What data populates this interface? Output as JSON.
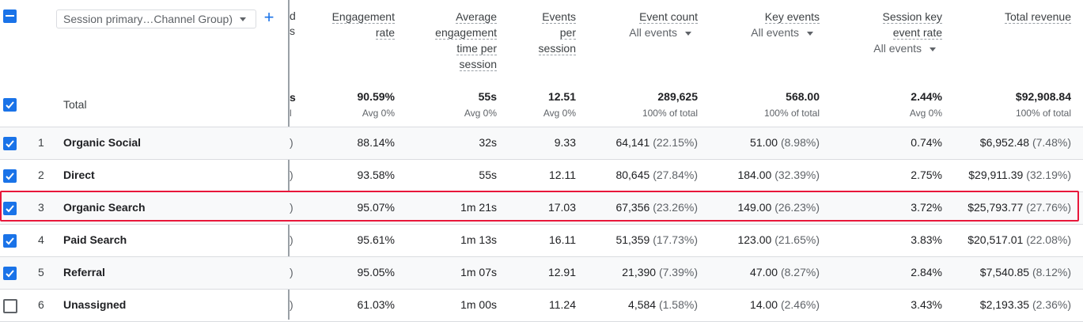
{
  "dimension_select": {
    "label": "Session primary…Channel Group)"
  },
  "add_label": "+",
  "columns": [
    {
      "key": "eng_rate",
      "lines": [
        "Engagement",
        "rate"
      ]
    },
    {
      "key": "avg_time",
      "lines": [
        "Average",
        "engagement",
        "time per",
        "session"
      ]
    },
    {
      "key": "events_per",
      "lines": [
        "Events",
        "per",
        "session"
      ]
    },
    {
      "key": "event_count",
      "lines": [
        "Event count"
      ],
      "filter": "All events"
    },
    {
      "key": "key_events",
      "lines": [
        "Key events"
      ],
      "filter": "All events"
    },
    {
      "key": "sess_key_rate",
      "lines": [
        "Session key",
        "event rate"
      ],
      "filter": "All events"
    },
    {
      "key": "revenue",
      "lines": [
        "Total revenue"
      ]
    }
  ],
  "clipped_header_fragments": [
    "d",
    "s"
  ],
  "clipped_total_fragments": [
    "s",
    "l"
  ],
  "clipped_row_fragment": ")",
  "total": {
    "label": "Total",
    "values": [
      "90.59%",
      "55s",
      "12.51",
      "289,625",
      "568.00",
      "2.44%",
      "$92,908.84"
    ],
    "subs": [
      "Avg 0%",
      "Avg 0%",
      "Avg 0%",
      "100% of total",
      "100% of total",
      "Avg 0%",
      "100% of total"
    ]
  },
  "rows": [
    {
      "n": "1",
      "channel": "Organic Social",
      "checked": true,
      "values": [
        "88.14%",
        "32s",
        "9.33",
        "64,141",
        "51.00",
        "0.74%",
        "$6,952.48"
      ],
      "pcts": [
        "",
        "",
        "",
        "(22.15%)",
        "(8.98%)",
        "",
        "(7.48%)"
      ]
    },
    {
      "n": "2",
      "channel": "Direct",
      "checked": true,
      "values": [
        "93.58%",
        "55s",
        "12.11",
        "80,645",
        "184.00",
        "2.75%",
        "$29,911.39"
      ],
      "pcts": [
        "",
        "",
        "",
        "(27.84%)",
        "(32.39%)",
        "",
        "(32.19%)"
      ]
    },
    {
      "n": "3",
      "channel": "Organic Search",
      "checked": true,
      "highlight": true,
      "values": [
        "95.07%",
        "1m 21s",
        "17.03",
        "67,356",
        "149.00",
        "3.72%",
        "$25,793.77"
      ],
      "pcts": [
        "",
        "",
        "",
        "(23.26%)",
        "(26.23%)",
        "",
        "(27.76%)"
      ]
    },
    {
      "n": "4",
      "channel": "Paid Search",
      "checked": true,
      "values": [
        "95.61%",
        "1m 13s",
        "16.11",
        "51,359",
        "123.00",
        "3.83%",
        "$20,517.01"
      ],
      "pcts": [
        "",
        "",
        "",
        "(17.73%)",
        "(21.65%)",
        "",
        "(22.08%)"
      ]
    },
    {
      "n": "5",
      "channel": "Referral",
      "checked": true,
      "values": [
        "95.05%",
        "1m 07s",
        "12.91",
        "21,390",
        "47.00",
        "2.84%",
        "$7,540.85"
      ],
      "pcts": [
        "",
        "",
        "",
        "(7.39%)",
        "(8.27%)",
        "",
        "(8.12%)"
      ]
    },
    {
      "n": "6",
      "channel": "Unassigned",
      "checked": false,
      "values": [
        "61.03%",
        "1m 00s",
        "11.24",
        "4,584",
        "14.00",
        "3.43%",
        "$2,193.35"
      ],
      "pcts": [
        "",
        "",
        "",
        "(1.58%)",
        "(2.46%)",
        "",
        "(2.36%)"
      ]
    }
  ],
  "colors": {
    "accent": "#1a73e8",
    "highlight": "#e8173a"
  }
}
